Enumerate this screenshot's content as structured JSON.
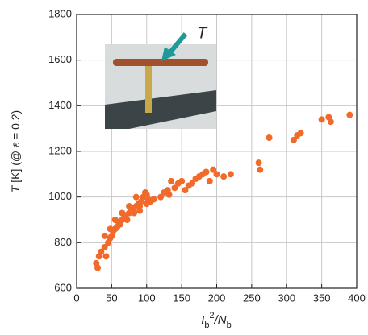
{
  "chart_data": {
    "type": "scatter",
    "xlabel": [
      "I",
      "b",
      "2",
      "/N",
      "b"
    ],
    "ylabel": [
      "T",
      " [K] (@ ",
      "ε",
      " = 0.2)"
    ],
    "annotation": "T",
    "color": "#f26a2a",
    "x": [
      28,
      30,
      32,
      35,
      40,
      42,
      45,
      48,
      50,
      52,
      55,
      58,
      60,
      62,
      65,
      68,
      70,
      72,
      75,
      78,
      80,
      82,
      85,
      88,
      90,
      92,
      95,
      98,
      100,
      102,
      105,
      110,
      120,
      125,
      130,
      132,
      135,
      140,
      145,
      150,
      155,
      160,
      165,
      170,
      175,
      180,
      185,
      190,
      195,
      200,
      210,
      220,
      260,
      262,
      275,
      310,
      315,
      320,
      350,
      360,
      363,
      390,
      55,
      85,
      75,
      40,
      48,
      65,
      90,
      100
    ],
    "values": [
      710,
      690,
      740,
      760,
      780,
      740,
      800,
      820,
      830,
      850,
      860,
      870,
      890,
      880,
      900,
      910,
      920,
      900,
      930,
      940,
      950,
      930,
      960,
      970,
      960,
      980,
      1000,
      1020,
      970,
      990,
      980,
      990,
      1000,
      1020,
      1030,
      1010,
      1070,
      1040,
      1060,
      1070,
      1030,
      1050,
      1060,
      1080,
      1090,
      1100,
      1110,
      1070,
      1120,
      1100,
      1090,
      1100,
      1150,
      1120,
      1260,
      1250,
      1270,
      1280,
      1340,
      1350,
      1330,
      1360,
      900,
      1000,
      960,
      830,
      860,
      930,
      940,
      1010
    ],
    "xlim": [
      0,
      400
    ],
    "xticks": [
      0,
      50,
      100,
      150,
      200,
      250,
      300,
      350,
      400
    ],
    "ylim": [
      600,
      1800
    ],
    "yticks": [
      600,
      800,
      1000,
      1200,
      1400,
      1600,
      1800
    ],
    "grid": true
  }
}
